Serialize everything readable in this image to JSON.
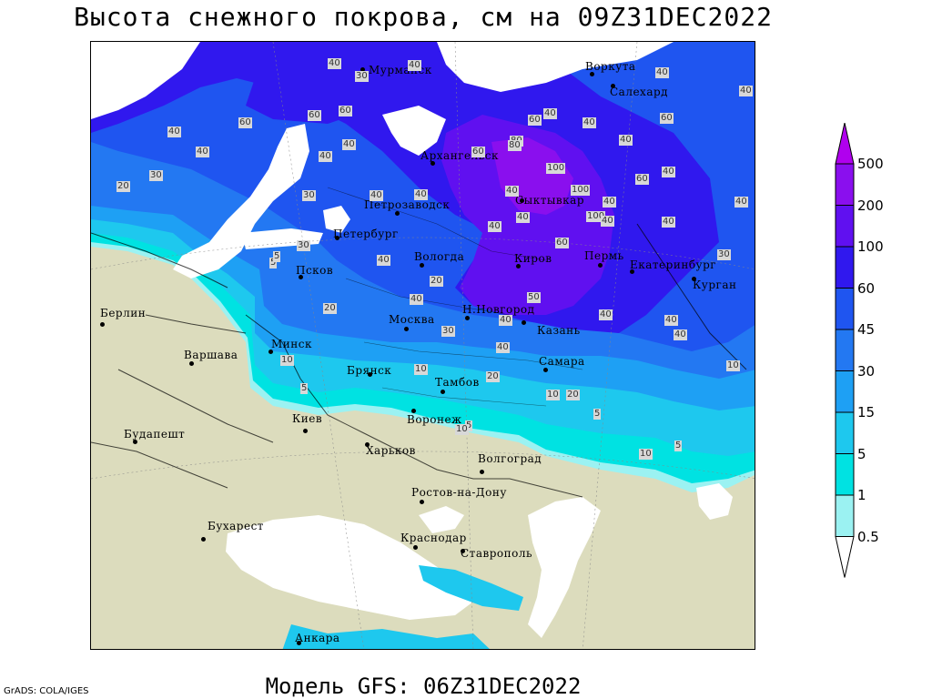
{
  "title": "Высота снежного покрова, см на 09Z31DEC2022",
  "subtitle": "Модель GFS: 06Z31DEC2022",
  "credit": "GrADS: COLA/IGES",
  "legend": {
    "levels": [
      {
        "label": "500",
        "color": "#b000ee"
      },
      {
        "label": "200",
        "color": "#8a0fee"
      },
      {
        "label": "100",
        "color": "#6010f0"
      },
      {
        "label": "60",
        "color": "#3018ee"
      },
      {
        "label": "45",
        "color": "#1f55f0"
      },
      {
        "label": "30",
        "color": "#2378f2"
      },
      {
        "label": "15",
        "color": "#1ea0f4"
      },
      {
        "label": "5",
        "color": "#1ec8ee"
      },
      {
        "label": "1",
        "color": "#00e2e2"
      },
      {
        "label": "0.5",
        "color": "#9bf2f2"
      }
    ]
  },
  "colors": {
    "land": "#dcdcbd",
    "water": "#ffffff"
  },
  "cities": [
    {
      "name": "Мурманск"
    },
    {
      "name": "Воркута"
    },
    {
      "name": "Салехард"
    },
    {
      "name": "Архангельск"
    },
    {
      "name": "Сыктывкар"
    },
    {
      "name": "Петрозаводск"
    },
    {
      "name": "Петербург"
    },
    {
      "name": "Вологда"
    },
    {
      "name": "Киров"
    },
    {
      "name": "Пермь"
    },
    {
      "name": "Екатеринбург"
    },
    {
      "name": "Курган"
    },
    {
      "name": "Псков"
    },
    {
      "name": "Н.Новгород"
    },
    {
      "name": "Казань"
    },
    {
      "name": "Москва"
    },
    {
      "name": "Берлин"
    },
    {
      "name": "Минск"
    },
    {
      "name": "Варшава"
    },
    {
      "name": "Брянск"
    },
    {
      "name": "Тамбов"
    },
    {
      "name": "Самара"
    },
    {
      "name": "Киев"
    },
    {
      "name": "Воронеж"
    },
    {
      "name": "Будапешт"
    },
    {
      "name": "Харьков"
    },
    {
      "name": "Волгоград"
    },
    {
      "name": "Ростов-на-Дону"
    },
    {
      "name": "Бухарест"
    },
    {
      "name": "Краснодар"
    },
    {
      "name": "Ставрополь"
    },
    {
      "name": "Анкара"
    }
  ],
  "contour_labels": [
    "40",
    "30",
    "40",
    "40",
    "40",
    "60",
    "60",
    "60",
    "40",
    "40",
    "40",
    "30",
    "20",
    "40",
    "30",
    "40",
    "60",
    "80",
    "100",
    "60",
    "40",
    "40",
    "40",
    "100",
    "40",
    "100",
    "60",
    "40",
    "40",
    "60",
    "40",
    "40",
    "40",
    "80",
    "40",
    "60",
    "40",
    "40",
    "50",
    "40",
    "30",
    "20",
    "5",
    "20",
    "40",
    "30",
    "40",
    "40",
    "40",
    "30",
    "40",
    "10",
    "10",
    "5",
    "20",
    "10",
    "20",
    "5",
    "10",
    "10",
    "5",
    "5",
    "5",
    "10",
    "40"
  ]
}
